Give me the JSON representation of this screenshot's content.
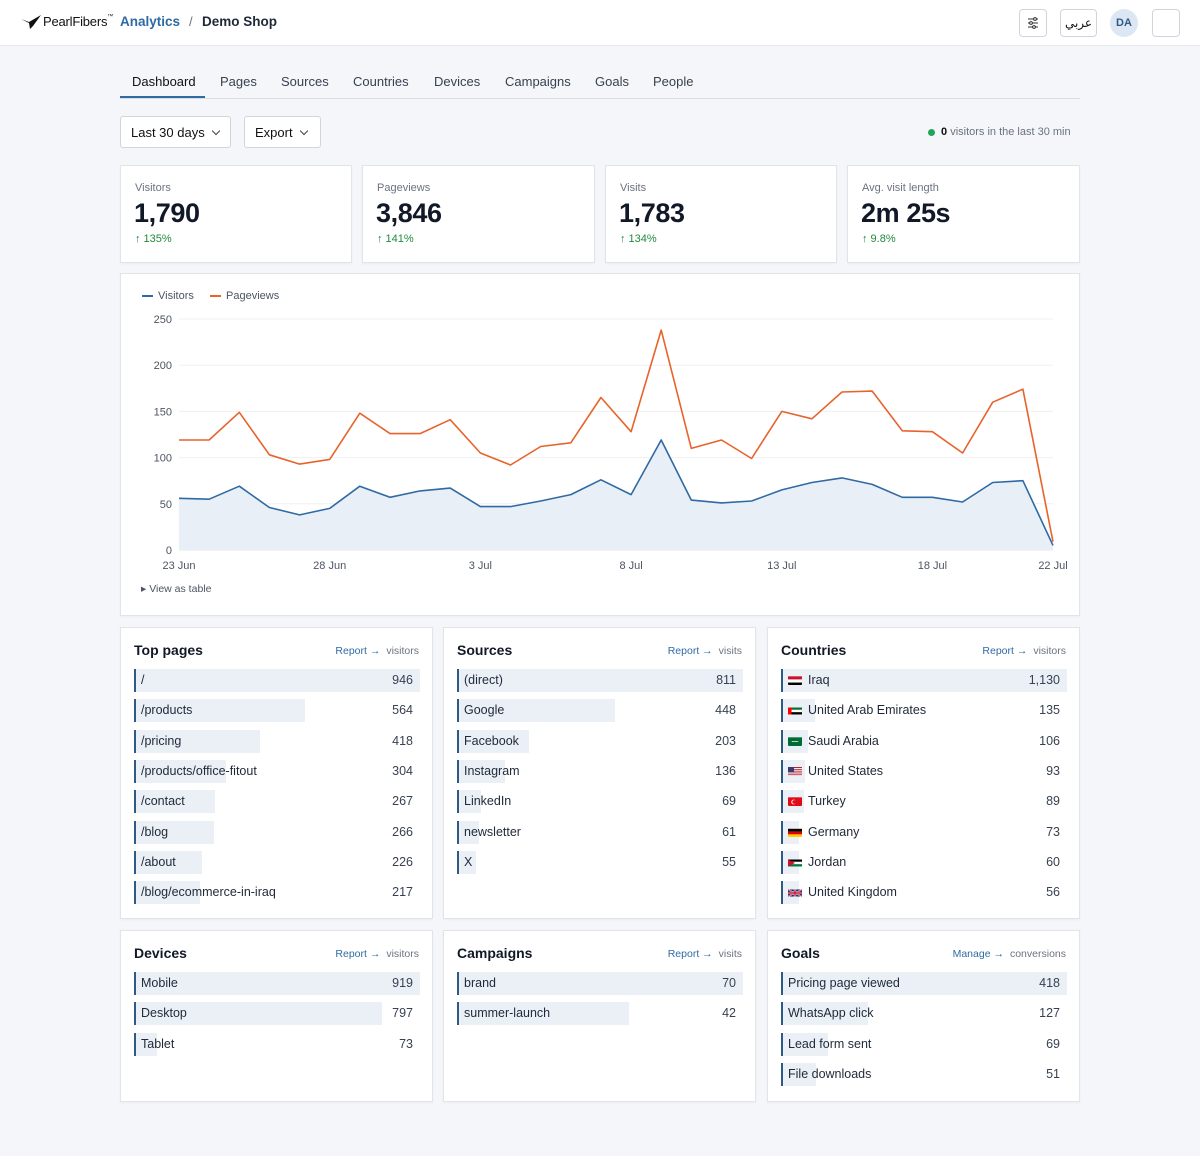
{
  "header": {
    "brand": "PearlFibers",
    "brand_tm": "™",
    "product": "Analytics",
    "separator": "/",
    "site": "Demo Shop",
    "language_button": "عربي",
    "avatar_initials": "DA",
    "icons": {
      "logo": "bird-logo-icon",
      "settings": "sliders-icon",
      "theme": "moon-icon"
    }
  },
  "tabs": [
    "Dashboard",
    "Pages",
    "Sources",
    "Countries",
    "Devices",
    "Campaigns",
    "Goals",
    "People"
  ],
  "active_tab": "Dashboard",
  "controls": {
    "date_range": "Last 30 days",
    "export": "Export",
    "live_count": "0",
    "live_text": "visitors in the last 30 min"
  },
  "stats": [
    {
      "label": "Visitors",
      "value": "1,790",
      "delta": "↑ 135%"
    },
    {
      "label": "Pageviews",
      "value": "3,846",
      "delta": "↑ 141%"
    },
    {
      "label": "Visits",
      "value": "1,783",
      "delta": "↑ 134%"
    },
    {
      "label": "Avg. visit length",
      "value": "2m 25s",
      "delta": "↑ 9.8%"
    }
  ],
  "colors": {
    "visitors": "#2f6aa3",
    "pageviews": "#e8632c",
    "accent": "#2f6aa3",
    "positive": "#1f8a3b"
  },
  "chart_data": {
    "type": "line",
    "x": [
      "23 Jun",
      "24 Jun",
      "25 Jun",
      "26 Jun",
      "27 Jun",
      "28 Jun",
      "29 Jun",
      "30 Jun",
      "1 Jul",
      "2 Jul",
      "3 Jul",
      "4 Jul",
      "5 Jul",
      "6 Jul",
      "7 Jul",
      "8 Jul",
      "9 Jul",
      "10 Jul",
      "11 Jul",
      "12 Jul",
      "13 Jul",
      "14 Jul",
      "15 Jul",
      "16 Jul",
      "17 Jul",
      "18 Jul",
      "19 Jul",
      "20 Jul",
      "21 Jul",
      "22 Jul"
    ],
    "tick_labels": [
      "23 Jun",
      "28 Jun",
      "3 Jul",
      "8 Jul",
      "13 Jul",
      "18 Jul",
      "22 Jul"
    ],
    "series": [
      {
        "name": "Visitors",
        "values": [
          56,
          55,
          69,
          46,
          38,
          45,
          69,
          57,
          64,
          67,
          47,
          47,
          53,
          60,
          76,
          60,
          119,
          54,
          51,
          53,
          65,
          73,
          78,
          71,
          57,
          57,
          52,
          73,
          75,
          5
        ],
        "fill": true
      },
      {
        "name": "Pageviews",
        "values": [
          119,
          119,
          149,
          103,
          93,
          98,
          148,
          126,
          126,
          141,
          105,
          92,
          112,
          116,
          165,
          128,
          238,
          110,
          119,
          99,
          150,
          142,
          171,
          172,
          129,
          128,
          105,
          160,
          174,
          9
        ]
      }
    ],
    "ylim": [
      0,
      250
    ],
    "yticks": [
      0,
      50,
      100,
      150,
      200,
      250
    ],
    "grid": true,
    "legend": "top-left",
    "table_toggle": "▸ View as table"
  },
  "panels": [
    {
      "title": "Top pages",
      "link": "Report →",
      "metric": "visitors",
      "max": 946,
      "rows": [
        {
          "label": "/",
          "value": "946",
          "n": 946
        },
        {
          "label": "/products",
          "value": "564",
          "n": 564
        },
        {
          "label": "/pricing",
          "value": "418",
          "n": 418
        },
        {
          "label": "/products/office-fitout",
          "value": "304",
          "n": 304
        },
        {
          "label": "/contact",
          "value": "267",
          "n": 267
        },
        {
          "label": "/blog",
          "value": "266",
          "n": 266
        },
        {
          "label": "/about",
          "value": "226",
          "n": 226
        },
        {
          "label": "/blog/ecommerce-in-iraq",
          "value": "217",
          "n": 217
        }
      ]
    },
    {
      "title": "Sources",
      "link": "Report →",
      "metric": "visits",
      "max": 811,
      "rows": [
        {
          "label": "(direct)",
          "value": "811",
          "n": 811
        },
        {
          "label": "Google",
          "value": "448",
          "n": 448
        },
        {
          "label": "Facebook",
          "value": "203",
          "n": 203
        },
        {
          "label": "Instagram",
          "value": "136",
          "n": 136
        },
        {
          "label": "LinkedIn",
          "value": "69",
          "n": 69
        },
        {
          "label": "newsletter",
          "value": "61",
          "n": 61
        },
        {
          "label": "X",
          "value": "55",
          "n": 55
        }
      ]
    },
    {
      "title": "Countries",
      "link": "Report →",
      "metric": "visitors",
      "max": 1130,
      "rows": [
        {
          "label": "Iraq",
          "value": "1,130",
          "n": 1130,
          "flag": "iq"
        },
        {
          "label": "United Arab Emirates",
          "value": "135",
          "n": 135,
          "flag": "ae"
        },
        {
          "label": "Saudi Arabia",
          "value": "106",
          "n": 106,
          "flag": "sa"
        },
        {
          "label": "United States",
          "value": "93",
          "n": 93,
          "flag": "us"
        },
        {
          "label": "Turkey",
          "value": "89",
          "n": 89,
          "flag": "tr"
        },
        {
          "label": "Germany",
          "value": "73",
          "n": 73,
          "flag": "de"
        },
        {
          "label": "Jordan",
          "value": "60",
          "n": 60,
          "flag": "jo"
        },
        {
          "label": "United Kingdom",
          "value": "56",
          "n": 56,
          "flag": "gb"
        }
      ]
    },
    {
      "title": "Devices",
      "link": "Report →",
      "metric": "visitors",
      "max": 919,
      "rows": [
        {
          "label": "Mobile",
          "value": "919",
          "n": 919
        },
        {
          "label": "Desktop",
          "value": "797",
          "n": 797
        },
        {
          "label": "Tablet",
          "value": "73",
          "n": 73
        }
      ]
    },
    {
      "title": "Campaigns",
      "link": "Report →",
      "metric": "visits",
      "max": 70,
      "rows": [
        {
          "label": "brand",
          "value": "70",
          "n": 70
        },
        {
          "label": "summer-launch",
          "value": "42",
          "n": 42
        }
      ]
    },
    {
      "title": "Goals",
      "link": "Manage →",
      "metric": "conversions",
      "max": 418,
      "rows": [
        {
          "label": "Pricing page viewed",
          "value": "418",
          "n": 418
        },
        {
          "label": "WhatsApp click",
          "value": "127",
          "n": 127
        },
        {
          "label": "Lead form sent",
          "value": "69",
          "n": 69
        },
        {
          "label": "File downloads",
          "value": "51",
          "n": 51
        }
      ]
    }
  ]
}
